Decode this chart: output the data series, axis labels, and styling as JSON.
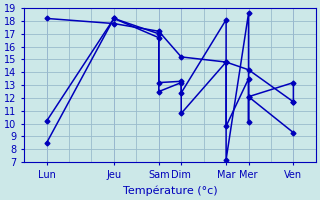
{
  "background_color": "#cce8e8",
  "grid_color": "#99bbcc",
  "line_color": "#0000bb",
  "xlabel": "Température (°c)",
  "xtick_labels": [
    "Lun",
    "Jeu",
    "Sam",
    "Dim",
    "Mar",
    "Mer",
    "Ven"
  ],
  "xtick_positions": [
    0,
    3,
    5,
    6,
    8,
    9,
    11
  ],
  "xlim": [
    -0.3,
    11.5
  ],
  "ylim": [
    7,
    19
  ],
  "yticks": [
    7,
    8,
    9,
    10,
    11,
    12,
    13,
    14,
    15,
    16,
    17,
    18,
    19
  ],
  "series": [
    {
      "x": [
        0,
        3,
        5,
        5,
        6,
        6,
        8,
        8,
        8,
        9,
        9,
        9,
        11
      ],
      "y": [
        8.5,
        18.2,
        17.0,
        12.5,
        13.2,
        12.4,
        18.1,
        14.8,
        7.2,
        18.6,
        10.1,
        12.1,
        9.3
      ]
    },
    {
      "x": [
        0,
        3,
        5,
        5,
        6,
        6,
        8,
        8,
        9,
        9,
        11,
        11
      ],
      "y": [
        10.2,
        18.2,
        16.7,
        13.2,
        13.3,
        10.8,
        14.8,
        9.8,
        13.5,
        12.1,
        13.2,
        11.7
      ]
    },
    {
      "x": [
        0,
        3,
        5,
        6,
        8,
        9,
        11
      ],
      "y": [
        18.2,
        17.8,
        17.2,
        15.2,
        14.8,
        14.2,
        11.7
      ]
    }
  ]
}
